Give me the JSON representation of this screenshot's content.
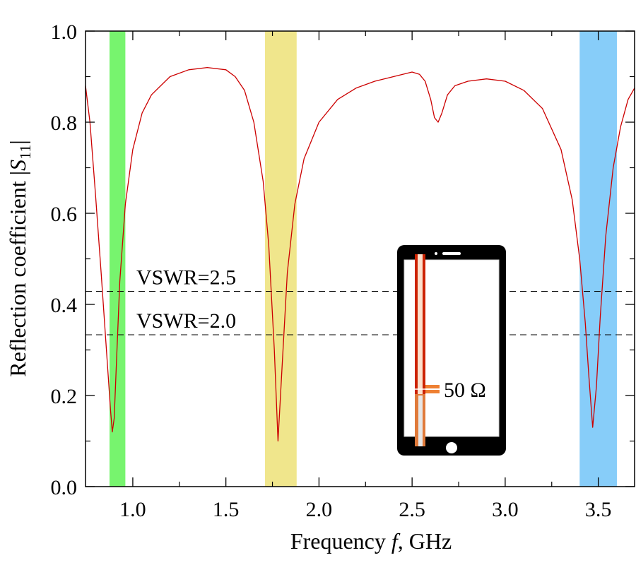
{
  "chart_data": {
    "type": "line",
    "title": "",
    "xlabel_prefix": "Frequency ",
    "xlabel_var": "f",
    "xlabel_suffix": ", GHz",
    "ylabel_prefix": "Reflection coefficient |",
    "ylabel_var": "S",
    "ylabel_sub": "11",
    "ylabel_suffix": "|",
    "xlim": [
      0.746,
      3.695
    ],
    "ylim": [
      0.0,
      1.0
    ],
    "x_ticks": [
      1.0,
      1.5,
      2.0,
      2.5,
      3.0,
      3.5
    ],
    "x_tick_labels": [
      "1.0",
      "1.5",
      "2.0",
      "2.5",
      "3.0",
      "3.5"
    ],
    "x_minor_ticks": [
      1.25,
      1.75,
      2.25,
      2.75,
      3.25
    ],
    "y_ticks": [
      0.0,
      0.2,
      0.4,
      0.6,
      0.8,
      1.0
    ],
    "y_tick_labels": [
      "0.0",
      "0.2",
      "0.4",
      "0.6",
      "0.8",
      "1.0"
    ],
    "y_minor_ticks": [
      0.1,
      0.3,
      0.5,
      0.7,
      0.9
    ],
    "grid": false,
    "series": [
      {
        "name": "|S11|",
        "color": "#cc0000",
        "x": [
          0.746,
          0.77,
          0.8,
          0.83,
          0.85,
          0.87,
          0.88,
          0.89,
          0.9,
          0.91,
          0.93,
          0.96,
          1.0,
          1.05,
          1.1,
          1.2,
          1.3,
          1.4,
          1.5,
          1.55,
          1.6,
          1.65,
          1.7,
          1.73,
          1.76,
          1.78,
          1.8,
          1.83,
          1.87,
          1.92,
          2.0,
          2.1,
          2.2,
          2.3,
          2.4,
          2.5,
          2.54,
          2.57,
          2.6,
          2.62,
          2.64,
          2.66,
          2.69,
          2.73,
          2.8,
          2.9,
          3.0,
          3.1,
          3.2,
          3.3,
          3.36,
          3.4,
          3.43,
          3.45,
          3.47,
          3.49,
          3.51,
          3.54,
          3.58,
          3.62,
          3.66,
          3.695
        ],
        "y": [
          0.88,
          0.8,
          0.64,
          0.47,
          0.35,
          0.23,
          0.17,
          0.12,
          0.15,
          0.25,
          0.45,
          0.62,
          0.74,
          0.82,
          0.86,
          0.9,
          0.915,
          0.92,
          0.915,
          0.9,
          0.87,
          0.8,
          0.67,
          0.53,
          0.3,
          0.1,
          0.25,
          0.47,
          0.62,
          0.72,
          0.8,
          0.85,
          0.875,
          0.89,
          0.9,
          0.91,
          0.905,
          0.89,
          0.85,
          0.81,
          0.8,
          0.82,
          0.86,
          0.88,
          0.89,
          0.895,
          0.89,
          0.87,
          0.83,
          0.74,
          0.63,
          0.5,
          0.36,
          0.24,
          0.13,
          0.22,
          0.37,
          0.55,
          0.7,
          0.79,
          0.85,
          0.875
        ]
      }
    ],
    "bands": [
      {
        "name": "band-low",
        "x_start": 0.875,
        "x_end": 0.96,
        "color": "#77f46e"
      },
      {
        "name": "band-mid",
        "x_start": 1.71,
        "x_end": 1.88,
        "color": "#f0e68c"
      },
      {
        "name": "band-high",
        "x_start": 3.4,
        "x_end": 3.6,
        "color": "#87cdf9"
      }
    ],
    "hlines": [
      {
        "label": "VSWR=2.5",
        "y": 0.4286
      },
      {
        "label": "VSWR=2.0",
        "y": 0.3333
      }
    ],
    "inset": {
      "label": "50 Ω"
    }
  }
}
